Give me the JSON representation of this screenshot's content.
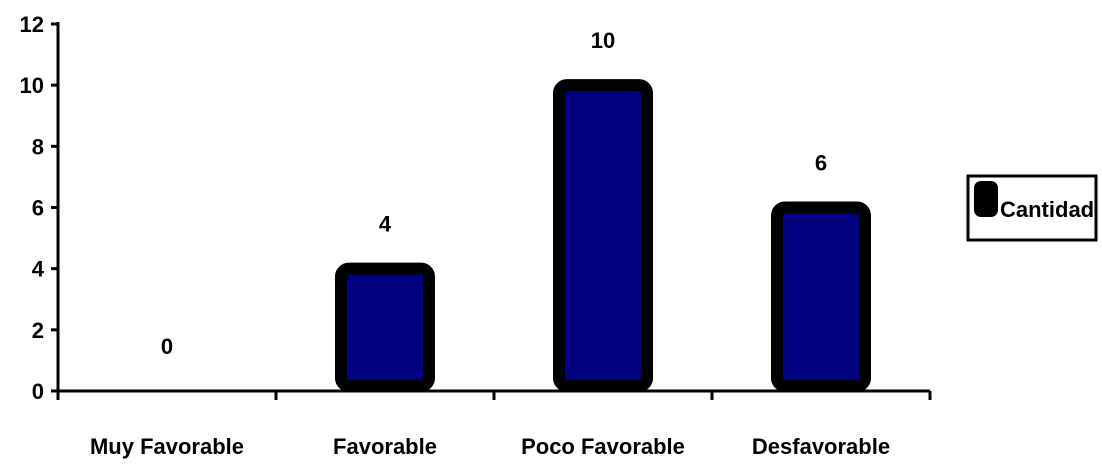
{
  "chart_data": {
    "type": "bar",
    "title": "",
    "xlabel": "",
    "ylabel": "",
    "categories": [
      "Muy Favorable",
      "Favorable",
      "Poco Favorable",
      "Desfavorable"
    ],
    "series": [
      {
        "name": "Cantidad",
        "values": [
          0,
          4,
          10,
          6
        ]
      }
    ],
    "ylim": [
      0,
      12
    ],
    "yticks": [
      0,
      2,
      4,
      6,
      8,
      10,
      12
    ],
    "data_labels": [
      "0",
      "4",
      "10",
      "6"
    ],
    "grid": false,
    "legend_position": "right",
    "colors": {
      "bar_fill": "#000080",
      "bar_border": "#000000",
      "axis": "#000000",
      "legend_swatch": "#000000"
    }
  }
}
